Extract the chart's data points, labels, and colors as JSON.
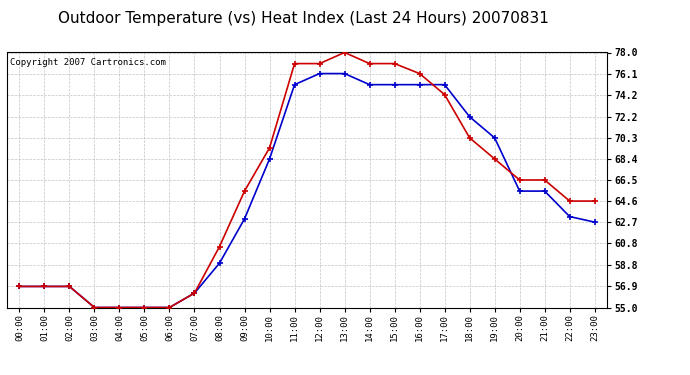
{
  "title": "Outdoor Temperature (vs) Heat Index (Last 24 Hours) 20070831",
  "copyright": "Copyright 2007 Cartronics.com",
  "x_labels": [
    "00:00",
    "01:00",
    "02:00",
    "03:00",
    "04:00",
    "05:00",
    "06:00",
    "07:00",
    "08:00",
    "09:00",
    "10:00",
    "11:00",
    "12:00",
    "13:00",
    "14:00",
    "15:00",
    "16:00",
    "17:00",
    "18:00",
    "19:00",
    "20:00",
    "21:00",
    "22:00",
    "23:00"
  ],
  "temp_data": [
    56.9,
    56.9,
    56.9,
    55.0,
    55.0,
    55.0,
    55.0,
    56.3,
    60.5,
    65.5,
    69.4,
    77.0,
    77.0,
    78.0,
    77.0,
    77.0,
    76.1,
    74.2,
    70.3,
    68.4,
    66.5,
    66.5,
    64.6,
    64.6
  ],
  "heat_index_data": [
    56.9,
    56.9,
    56.9,
    55.0,
    55.0,
    55.0,
    55.0,
    56.3,
    59.0,
    63.0,
    68.4,
    75.1,
    76.1,
    76.1,
    75.1,
    75.1,
    75.1,
    75.1,
    72.2,
    70.3,
    65.5,
    65.5,
    63.2,
    62.7
  ],
  "temp_color": "#cc0000",
  "heat_index_color": "#0000cc",
  "yticks": [
    55.0,
    56.9,
    58.8,
    60.8,
    62.7,
    64.6,
    66.5,
    68.4,
    70.3,
    72.2,
    74.2,
    76.1,
    78.0
  ],
  "ymin": 55.0,
  "ymax": 78.0,
  "bg_color": "#ffffff",
  "plot_bg_color": "#ffffff",
  "grid_color": "#aaaaaa",
  "title_fontsize": 11,
  "copyright_fontsize": 6.5
}
